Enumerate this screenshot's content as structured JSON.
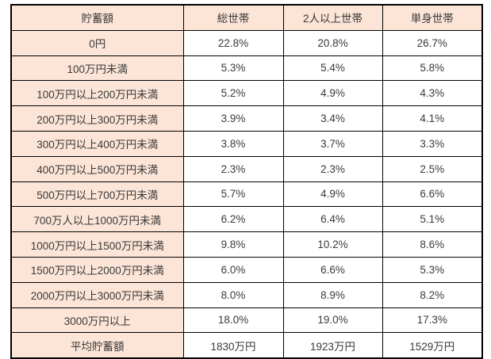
{
  "colors": {
    "header_fill": "#fce4d6",
    "border": "#000000",
    "text": "#3a3a3a",
    "cell_background": "#ffffff"
  },
  "table": {
    "headers": [
      "貯蓄額",
      "総世帯",
      "2人以上世帯",
      "単身世帯"
    ],
    "rows": [
      {
        "label": "0円",
        "values": [
          "22.8%",
          "20.8%",
          "26.7%"
        ]
      },
      {
        "label": "100万円未満",
        "values": [
          "5.3%",
          "5.4%",
          "5.8%"
        ]
      },
      {
        "label": "100万円以上200万円未満",
        "values": [
          "5.2%",
          "4.9%",
          "4.3%"
        ]
      },
      {
        "label": "200万円以上300万円未満",
        "values": [
          "3.9%",
          "3.4%",
          "4.1%"
        ]
      },
      {
        "label": "300万円以上400万円未満",
        "values": [
          "3.8%",
          "3.7%",
          "3.3%"
        ]
      },
      {
        "label": "400万円以上500万円未満",
        "values": [
          "2.3%",
          "2.3%",
          "2.5%"
        ]
      },
      {
        "label": "500万円以上700万円未満",
        "values": [
          "5.7%",
          "4.9%",
          "6.6%"
        ]
      },
      {
        "label": "700万人以上1000万円未満",
        "values": [
          "6.2%",
          "6.4%",
          "5.1%"
        ]
      },
      {
        "label": "1000万円以上1500万円未満",
        "values": [
          "9.8%",
          "10.2%",
          "8.6%"
        ]
      },
      {
        "label": "1500万円以上2000万円未満",
        "values": [
          "6.0%",
          "6.6%",
          "5.3%"
        ]
      },
      {
        "label": "2000万円以上3000万円未満",
        "values": [
          "8.0%",
          "8.9%",
          "8.2%"
        ]
      },
      {
        "label": "3000万円以上",
        "values": [
          "18.0%",
          "19.0%",
          "17.3%"
        ]
      },
      {
        "label": "平均貯蓄額",
        "values": [
          "1830万円",
          "1923万円",
          "1529万円"
        ]
      }
    ]
  },
  "chart_data": {
    "type": "table",
    "title": "",
    "columns": [
      "貯蓄額",
      "総世帯",
      "2人以上世帯",
      "単身世帯"
    ],
    "categories": [
      "0円",
      "100万円未満",
      "100万円以上200万円未満",
      "200万円以上300万円未満",
      "300万円以上400万円未満",
      "400万円以上500万円未満",
      "500万円以上700万円未満",
      "700万人以上1000万円未満",
      "1000万円以上1500万円未満",
      "1500万円以上2000万円未満",
      "2000万円以上3000万円未満",
      "3000万円以上",
      "平均貯蓄額"
    ],
    "series": [
      {
        "name": "総世帯",
        "values": [
          "22.8%",
          "5.3%",
          "5.2%",
          "3.9%",
          "3.8%",
          "2.3%",
          "5.7%",
          "6.2%",
          "9.8%",
          "6.0%",
          "8.0%",
          "18.0%",
          "1830万円"
        ]
      },
      {
        "name": "2人以上世帯",
        "values": [
          "20.8%",
          "5.4%",
          "4.9%",
          "3.4%",
          "3.7%",
          "2.3%",
          "4.9%",
          "6.4%",
          "10.2%",
          "6.6%",
          "8.9%",
          "19.0%",
          "1923万円"
        ]
      },
      {
        "name": "単身世帯",
        "values": [
          "26.7%",
          "5.8%",
          "4.3%",
          "4.1%",
          "3.3%",
          "2.5%",
          "6.6%",
          "5.1%",
          "8.6%",
          "5.3%",
          "8.2%",
          "17.3%",
          "1529万円"
        ]
      }
    ]
  }
}
